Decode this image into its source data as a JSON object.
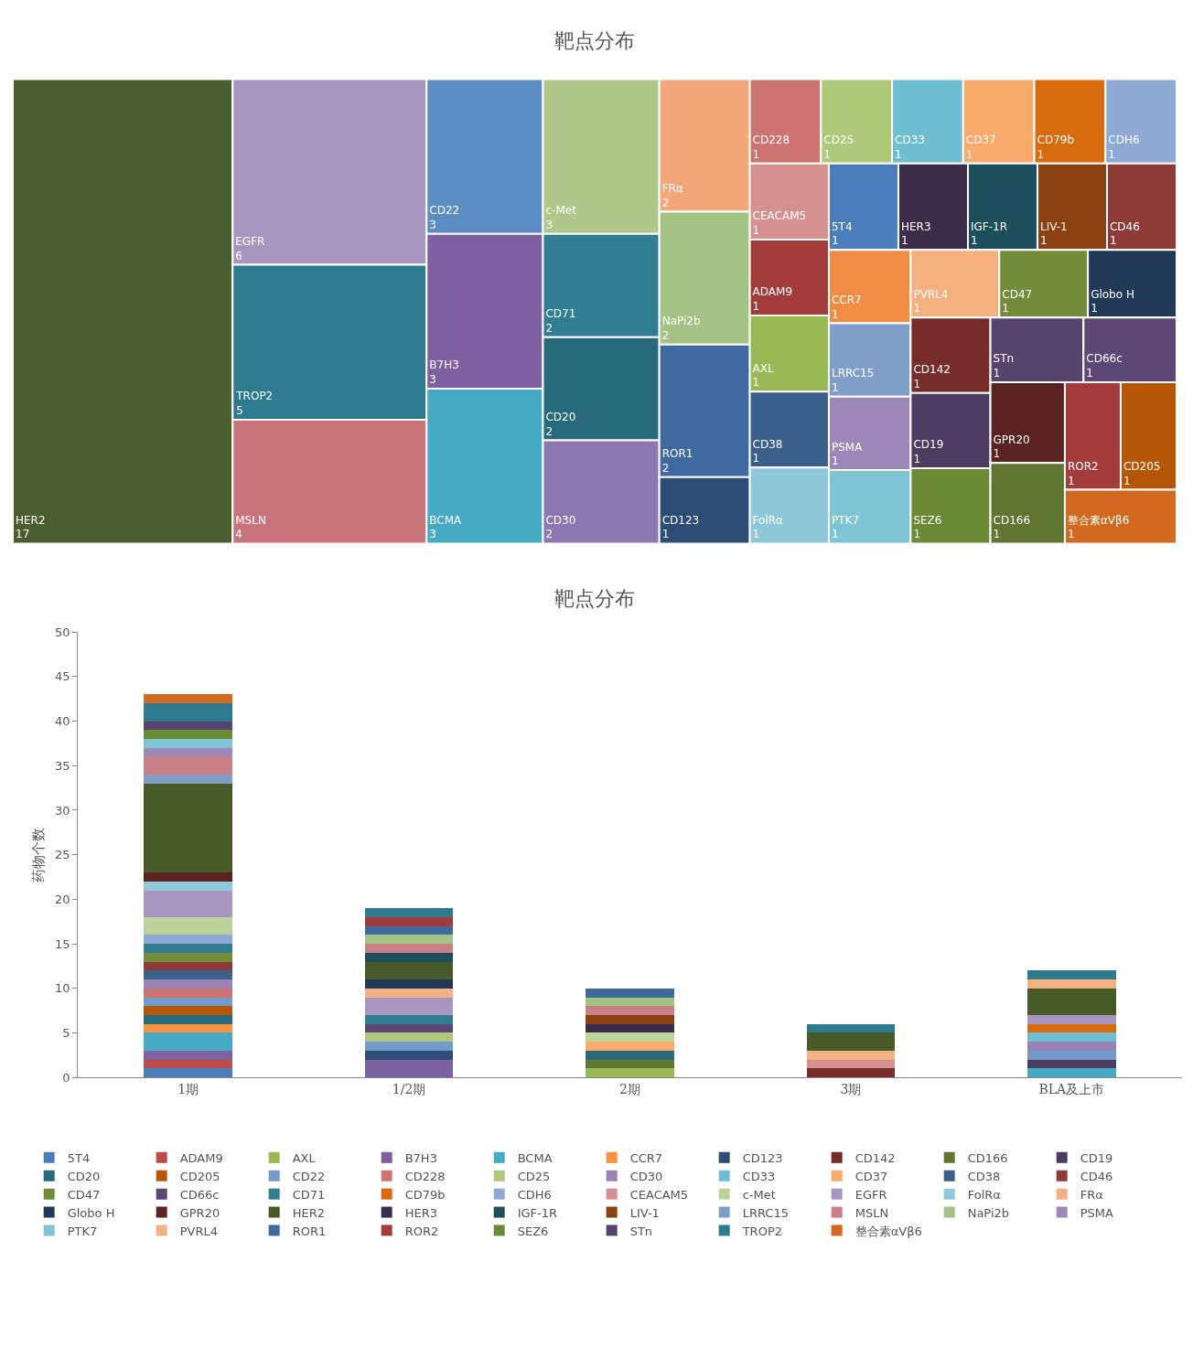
{
  "chart_data": [
    {
      "type": "other",
      "title": "靶点分布",
      "data_labels": true,
      "categories": [
        "HER2",
        "EGFR",
        "TROP2",
        "MSLN",
        "CD22",
        "B7H3",
        "BCMA",
        "c-Met",
        "CD71",
        "CD20",
        "CD30",
        "FRα",
        "NaPi2b",
        "ROR1",
        "CD123",
        "CD228",
        "CD25",
        "CD33",
        "CD37",
        "CD79b",
        "CDH6",
        "CEACAM5",
        "ADAM9",
        "AXL",
        "CD38",
        "FolRα",
        "5T4",
        "HER3",
        "IGF-1R",
        "LIV-1",
        "CD46",
        "CCR7",
        "LRRC15",
        "PSMA",
        "PTK7",
        "PVRL4",
        "CD47",
        "Globo H",
        "CD142",
        "CD19",
        "SEZ6",
        "STn",
        "CD66c",
        "GPR20",
        "CD166",
        "ROR2",
        "CD205",
        "整合素αVβ6"
      ],
      "values": [
        17,
        6,
        5,
        4,
        3,
        3,
        3,
        3,
        2,
        2,
        2,
        2,
        2,
        2,
        1,
        1,
        1,
        1,
        1,
        1,
        1,
        1,
        1,
        1,
        1,
        1,
        1,
        1,
        1,
        1,
        1,
        1,
        1,
        1,
        1,
        1,
        1,
        1,
        1,
        1,
        1,
        1,
        1,
        1,
        1,
        1,
        1,
        1
      ],
      "colors": [
        "#4b5e2f",
        "#a896c1",
        "#2e7a8e",
        "#c8747a",
        "#5b8dc4",
        "#7d60a0",
        "#46aac5",
        "#afc88a",
        "#317d92",
        "#276a7c",
        "#8d77b2",
        "#f4a77b",
        "#a3c283",
        "#3e6aa0",
        "#2c4d75",
        "#cd7371",
        "#afc97a",
        "#6fbdd1",
        "#f9ab6b",
        "#d86b0e",
        "#8ea9d3",
        "#d49190",
        "#a33b3b",
        "#98b954",
        "#3a5f8b",
        "#8fc8d8",
        "#4a7ebb",
        "#3b2d4a",
        "#1d4e5b",
        "#8a4010",
        "#8e3b38",
        "#f08c44",
        "#7f9fc8",
        "#9d87b8",
        "#7ec4d4",
        "#f5b07f",
        "#728c3a",
        "#203956",
        "#772c2a",
        "#4d3b62",
        "#6a8a35",
        "#56446e",
        "#5c4776",
        "#5a2220",
        "#5f7530",
        "#a33b3b",
        "#b65708",
        "#d2691e"
      ]
    },
    {
      "type": "bar",
      "title": "靶点分布",
      "ylabel": "药物个数",
      "stacked": true,
      "legend": "bottom",
      "categories": [
        "1期",
        "1/2期",
        "2期",
        "3期",
        "BLA及上市"
      ],
      "ylim": [
        0,
        50
      ],
      "yticks": [
        0,
        5,
        10,
        15,
        20,
        25,
        30,
        35,
        40,
        45,
        50
      ],
      "series": [
        {
          "name": "5T4",
          "color": "#4a7ebb",
          "values": [
            1,
            0,
            0,
            0,
            0
          ]
        },
        {
          "name": "ADAM9",
          "color": "#be4b48",
          "values": [
            1,
            0,
            0,
            0,
            0
          ]
        },
        {
          "name": "AXL",
          "color": "#98b954",
          "values": [
            0,
            0,
            1,
            0,
            0
          ]
        },
        {
          "name": "B7H3",
          "color": "#7d60a0",
          "values": [
            1,
            2,
            0,
            0,
            0
          ]
        },
        {
          "name": "BCMA",
          "color": "#46aac5",
          "values": [
            2,
            0,
            0,
            0,
            1
          ]
        },
        {
          "name": "CCR7",
          "color": "#f69240",
          "values": [
            1,
            0,
            0,
            0,
            0
          ]
        },
        {
          "name": "CD123",
          "color": "#2c4d75",
          "values": [
            0,
            1,
            0,
            0,
            0
          ]
        },
        {
          "name": "CD142",
          "color": "#772c2a",
          "values": [
            0,
            0,
            0,
            1,
            0
          ]
        },
        {
          "name": "CD166",
          "color": "#5f7530",
          "values": [
            0,
            0,
            1,
            0,
            0
          ]
        },
        {
          "name": "CD19",
          "color": "#4d3b62",
          "values": [
            0,
            0,
            0,
            0,
            1
          ]
        },
        {
          "name": "CD20",
          "color": "#276a7c",
          "values": [
            1,
            0,
            1,
            0,
            0
          ]
        },
        {
          "name": "CD205",
          "color": "#b65708",
          "values": [
            1,
            0,
            0,
            0,
            0
          ]
        },
        {
          "name": "CD22",
          "color": "#729aca",
          "values": [
            1,
            1,
            0,
            0,
            1
          ]
        },
        {
          "name": "CD228",
          "color": "#cd7371",
          "values": [
            1,
            0,
            0,
            0,
            0
          ]
        },
        {
          "name": "CD25",
          "color": "#afc97a",
          "values": [
            0,
            1,
            0,
            0,
            0
          ]
        },
        {
          "name": "CD30",
          "color": "#9983b5",
          "values": [
            1,
            0,
            0,
            0,
            1
          ]
        },
        {
          "name": "CD33",
          "color": "#6fbdd1",
          "values": [
            0,
            0,
            0,
            0,
            1
          ]
        },
        {
          "name": "CD37",
          "color": "#f9ab6b",
          "values": [
            0,
            0,
            1,
            0,
            0
          ]
        },
        {
          "name": "CD38",
          "color": "#3a5f8b",
          "values": [
            1,
            0,
            0,
            0,
            0
          ]
        },
        {
          "name": "CD46",
          "color": "#8e3b38",
          "values": [
            1,
            0,
            0,
            0,
            0
          ]
        },
        {
          "name": "CD47",
          "color": "#728c3a",
          "values": [
            1,
            0,
            0,
            0,
            0
          ]
        },
        {
          "name": "CD66c",
          "color": "#5c4776",
          "values": [
            0,
            1,
            0,
            0,
            0
          ]
        },
        {
          "name": "CD71",
          "color": "#317d92",
          "values": [
            1,
            1,
            0,
            0,
            0
          ]
        },
        {
          "name": "CD79b",
          "color": "#d86b0e",
          "values": [
            0,
            0,
            0,
            0,
            1
          ]
        },
        {
          "name": "CDH6",
          "color": "#8ea9d3",
          "values": [
            1,
            0,
            0,
            0,
            0
          ]
        },
        {
          "name": "CEACAM5",
          "color": "#d49190",
          "values": [
            0,
            0,
            0,
            1,
            0
          ]
        },
        {
          "name": "c-Met",
          "color": "#bcd39a",
          "values": [
            2,
            0,
            1,
            0,
            0
          ]
        },
        {
          "name": "EGFR",
          "color": "#a896c1",
          "values": [
            3,
            2,
            0,
            0,
            1
          ]
        },
        {
          "name": "FolRα",
          "color": "#8fc8d8",
          "values": [
            1,
            0,
            0,
            0,
            0
          ]
        },
        {
          "name": "FRα",
          "color": "#f4b183",
          "values": [
            0,
            1,
            0,
            1,
            0
          ]
        },
        {
          "name": "Globo H",
          "color": "#203956",
          "values": [
            0,
            1,
            0,
            0,
            0
          ]
        },
        {
          "name": "GPR20",
          "color": "#5a2220",
          "values": [
            1,
            0,
            0,
            0,
            0
          ]
        },
        {
          "name": "HER2",
          "color": "#475a27",
          "values": [
            10,
            2,
            0,
            2,
            3
          ]
        },
        {
          "name": "HER3",
          "color": "#3b2d4a",
          "values": [
            0,
            0,
            1,
            0,
            0
          ]
        },
        {
          "name": "IGF-1R",
          "color": "#1d4e5b",
          "values": [
            0,
            1,
            0,
            0,
            0
          ]
        },
        {
          "name": "LIV-1",
          "color": "#8a4010",
          "values": [
            0,
            0,
            1,
            0,
            0
          ]
        },
        {
          "name": "LRRC15",
          "color": "#7f9fc8",
          "values": [
            1,
            0,
            0,
            0,
            0
          ]
        },
        {
          "name": "MSLN",
          "color": "#c87f86",
          "values": [
            2,
            1,
            1,
            0,
            0
          ]
        },
        {
          "name": "NaPi2b",
          "color": "#a3c283",
          "values": [
            0,
            1,
            1,
            0,
            0
          ]
        },
        {
          "name": "PSMA",
          "color": "#9d87b8",
          "values": [
            1,
            0,
            0,
            0,
            0
          ]
        },
        {
          "name": "PTK7",
          "color": "#7ec4d4",
          "values": [
            1,
            0,
            0,
            0,
            0
          ]
        },
        {
          "name": "PVRL4",
          "color": "#f5b07f",
          "values": [
            0,
            0,
            0,
            0,
            1
          ]
        },
        {
          "name": "ROR1",
          "color": "#3e6aa0",
          "values": [
            0,
            1,
            1,
            0,
            0
          ]
        },
        {
          "name": "ROR2",
          "color": "#a33b3b",
          "values": [
            0,
            1,
            0,
            0,
            0
          ]
        },
        {
          "name": "SEZ6",
          "color": "#6a8a35",
          "values": [
            1,
            0,
            0,
            0,
            0
          ]
        },
        {
          "name": "STn",
          "color": "#56446e",
          "values": [
            1,
            0,
            0,
            0,
            0
          ]
        },
        {
          "name": "TROP2",
          "color": "#2e7a8e",
          "values": [
            2,
            1,
            0,
            1,
            1
          ]
        },
        {
          "name": "整合素αVβ6",
          "color": "#d2691e",
          "values": [
            1,
            0,
            0,
            0,
            0
          ]
        }
      ]
    }
  ]
}
